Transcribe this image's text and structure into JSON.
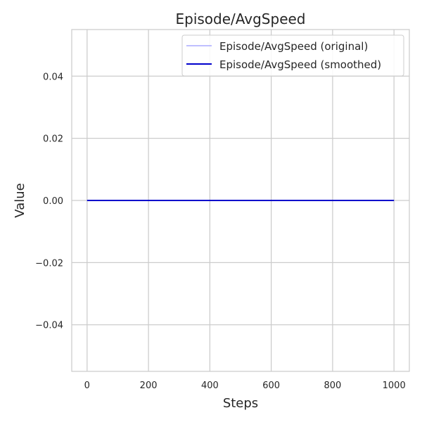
{
  "chart_data": {
    "type": "line",
    "title": "Episode/AvgSpeed",
    "xlabel": "Steps",
    "ylabel": "Value",
    "xlim": [
      -50,
      1050
    ],
    "ylim": [
      -0.055,
      0.055
    ],
    "x_ticks": [
      0,
      200,
      400,
      600,
      800,
      1000
    ],
    "x_tick_labels": [
      "0",
      "200",
      "400",
      "600",
      "800",
      "1000"
    ],
    "y_ticks": [
      -0.04,
      -0.02,
      0.0,
      0.02,
      0.04
    ],
    "y_tick_labels": [
      "−0.04",
      "−0.02",
      "0.00",
      "0.02",
      "0.04"
    ],
    "grid": true,
    "legend_position": "top-right",
    "series": [
      {
        "name": "Episode/AvgSpeed (original)",
        "color": "#aaaaff",
        "x": [
          0,
          1000
        ],
        "y": [
          0.0,
          0.0
        ]
      },
      {
        "name": "Episode/AvgSpeed (smoothed)",
        "color": "#0000cc",
        "x": [
          0,
          1000
        ],
        "y": [
          0.0,
          0.0
        ]
      }
    ]
  }
}
